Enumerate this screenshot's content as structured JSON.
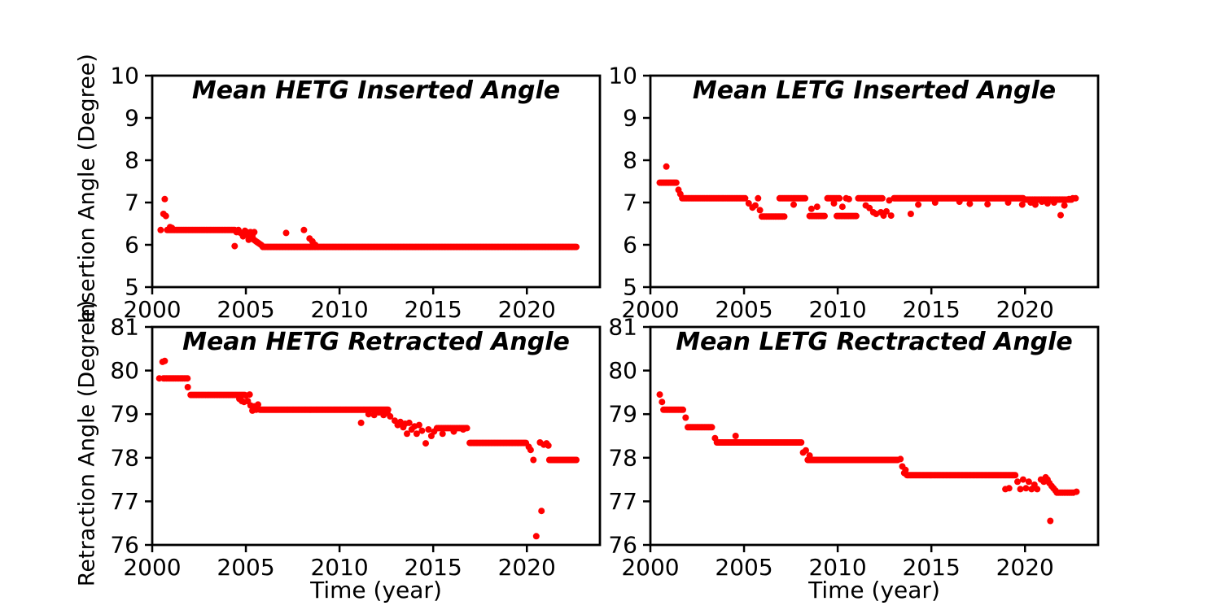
{
  "colors": {
    "marker": "#ff0000",
    "axis": "#000000",
    "background": "#ffffff"
  },
  "axis_labels": {
    "y_top": "Insertion Angle (Degree)",
    "y_bottom": "Retraction Angle (Degree)",
    "x_left": "Time (year)",
    "x_right": "Time (year)"
  },
  "chart_data": [
    {
      "id": "hetg-inserted",
      "type": "scatter",
      "title": "Mean HETG Inserted Angle",
      "xlabel": "",
      "ylabel": "Insertion Angle (Degree)",
      "xlim": [
        2000,
        2023.9
      ],
      "ylim": [
        5,
        10
      ],
      "xticks": [
        2000,
        2005,
        2010,
        2015,
        2020
      ],
      "yticks": [
        5,
        6,
        7,
        8,
        9,
        10
      ],
      "grid": false,
      "legend": null,
      "marker_color": "#ff0000",
      "bands": [
        [
          2000.8,
          2004.45,
          6.35
        ],
        [
          2005.9,
          2022.65,
          5.95,
          0.06
        ]
      ],
      "ramps": [
        [
          2004.95,
          2005.9,
          6.27,
          5.97
        ]
      ],
      "points": [
        [
          2000.45,
          6.35
        ],
        [
          2000.6,
          6.73
        ],
        [
          2000.73,
          6.68
        ],
        [
          2000.67,
          7.08
        ],
        [
          2000.95,
          6.42
        ],
        [
          2001.05,
          6.4
        ],
        [
          2004.4,
          5.97
        ],
        [
          2004.5,
          6.3
        ],
        [
          2004.6,
          6.35
        ],
        [
          2004.72,
          6.28
        ],
        [
          2004.85,
          6.2
        ],
        [
          2004.95,
          6.33
        ],
        [
          2005.05,
          6.3
        ],
        [
          2005.15,
          6.12
        ],
        [
          2005.25,
          6.3
        ],
        [
          2005.35,
          6.22
        ],
        [
          2005.45,
          6.3
        ],
        [
          2007.15,
          6.28
        ],
        [
          2008.1,
          6.35
        ],
        [
          2008.4,
          6.15
        ],
        [
          2008.55,
          6.08
        ],
        [
          2008.7,
          6.0
        ]
      ]
    },
    {
      "id": "letg-inserted",
      "type": "scatter",
      "title": "Mean LETG Inserted Angle",
      "xlabel": "",
      "ylabel": "Insertion Angle (Degree)",
      "xlim": [
        2000,
        2023.9
      ],
      "ylim": [
        5,
        10
      ],
      "xticks": [
        2000,
        2005,
        2010,
        2015,
        2020
      ],
      "yticks": [
        5,
        6,
        7,
        8,
        9,
        10
      ],
      "grid": false,
      "legend": null,
      "marker_color": "#ff0000",
      "bands": [
        [
          2000.5,
          2001.45,
          7.47
        ],
        [
          2001.7,
          2005.1,
          7.1
        ],
        [
          2005.95,
          2007.15,
          6.67
        ],
        [
          2006.9,
          2008.3,
          7.1
        ],
        [
          2008.5,
          2009.35,
          6.68
        ],
        [
          2009.45,
          2010.15,
          7.1
        ],
        [
          2009.95,
          2011.05,
          6.68
        ],
        [
          2011.1,
          2012.4,
          7.1
        ],
        [
          2013.0,
          2019.95,
          7.1,
          0.06
        ],
        [
          2020.0,
          2022.5,
          7.07
        ]
      ],
      "ramps": [],
      "points": [
        [
          2000.85,
          7.85
        ],
        [
          2001.5,
          7.3
        ],
        [
          2001.6,
          7.2
        ],
        [
          2005.25,
          6.98
        ],
        [
          2005.45,
          6.88
        ],
        [
          2005.6,
          6.93
        ],
        [
          2005.75,
          7.1
        ],
        [
          2005.85,
          6.82
        ],
        [
          2007.65,
          6.95
        ],
        [
          2008.6,
          6.85
        ],
        [
          2008.9,
          6.9
        ],
        [
          2009.8,
          6.98
        ],
        [
          2010.25,
          6.9
        ],
        [
          2010.45,
          7.1
        ],
        [
          2010.6,
          7.08
        ],
        [
          2011.5,
          6.93
        ],
        [
          2011.7,
          6.87
        ],
        [
          2011.9,
          6.77
        ],
        [
          2012.05,
          6.73
        ],
        [
          2012.3,
          6.77
        ],
        [
          2012.45,
          6.69
        ],
        [
          2012.6,
          6.79
        ],
        [
          2012.85,
          6.69
        ],
        [
          2012.75,
          7.05
        ],
        [
          2013.9,
          6.73
        ],
        [
          2014.3,
          6.95
        ],
        [
          2015.2,
          7.0
        ],
        [
          2016.5,
          7.02
        ],
        [
          2017.05,
          6.97
        ],
        [
          2018.0,
          6.96
        ],
        [
          2019.1,
          7.0
        ],
        [
          2019.85,
          6.95
        ],
        [
          2020.3,
          7.0
        ],
        [
          2020.55,
          6.95
        ],
        [
          2020.9,
          7.02
        ],
        [
          2021.2,
          6.98
        ],
        [
          2021.55,
          7.0
        ],
        [
          2021.9,
          6.7
        ],
        [
          2022.1,
          6.93
        ],
        [
          2022.35,
          7.08
        ],
        [
          2022.55,
          7.1
        ],
        [
          2022.7,
          7.1
        ]
      ]
    },
    {
      "id": "hetg-retracted",
      "type": "scatter",
      "title": "Mean HETG Retracted Angle",
      "xlabel": "Time (year)",
      "ylabel": "Retraction Angle (Degree)",
      "xlim": [
        2000,
        2023.9
      ],
      "ylim": [
        76,
        81
      ],
      "xticks": [
        2000,
        2005,
        2010,
        2015,
        2020
      ],
      "yticks": [
        76,
        77,
        78,
        79,
        80,
        81
      ],
      "grid": false,
      "legend": null,
      "marker_color": "#ff0000",
      "bands": [
        [
          2000.6,
          2001.95,
          79.82
        ],
        [
          2002.05,
          2004.95,
          79.44
        ],
        [
          2005.75,
          2012.6,
          79.1,
          0.06
        ],
        [
          2015.2,
          2016.85,
          78.68
        ],
        [
          2016.95,
          2020.0,
          78.34,
          0.06
        ],
        [
          2021.2,
          2022.67,
          77.95,
          0.06
        ]
      ],
      "ramps": [],
      "points": [
        [
          2000.38,
          79.82
        ],
        [
          2000.55,
          80.2
        ],
        [
          2000.67,
          80.22
        ],
        [
          2001.9,
          79.62
        ],
        [
          2004.65,
          79.35
        ],
        [
          2004.78,
          79.3
        ],
        [
          2004.9,
          79.28
        ],
        [
          2005.0,
          79.43
        ],
        [
          2005.1,
          79.3
        ],
        [
          2005.2,
          79.45
        ],
        [
          2005.25,
          79.2
        ],
        [
          2005.35,
          79.08
        ],
        [
          2005.45,
          79.18
        ],
        [
          2005.55,
          79.1
        ],
        [
          2005.65,
          79.22
        ],
        [
          2011.15,
          78.8
        ],
        [
          2011.55,
          79.0
        ],
        [
          2011.85,
          78.98
        ],
        [
          2012.1,
          79.04
        ],
        [
          2012.35,
          78.98
        ],
        [
          2012.55,
          79.03
        ],
        [
          2012.7,
          78.95
        ],
        [
          2012.95,
          78.85
        ],
        [
          2013.1,
          78.75
        ],
        [
          2013.25,
          78.82
        ],
        [
          2013.4,
          78.7
        ],
        [
          2013.5,
          78.78
        ],
        [
          2013.6,
          78.55
        ],
        [
          2013.72,
          78.8
        ],
        [
          2013.85,
          78.65
        ],
        [
          2014.0,
          78.72
        ],
        [
          2014.12,
          78.55
        ],
        [
          2014.25,
          78.75
        ],
        [
          2014.4,
          78.62
        ],
        [
          2014.6,
          78.33
        ],
        [
          2014.75,
          78.65
        ],
        [
          2014.9,
          78.5
        ],
        [
          2015.05,
          78.6
        ],
        [
          2015.5,
          78.55
        ],
        [
          2016.1,
          78.6
        ],
        [
          2016.6,
          78.65
        ],
        [
          2020.1,
          78.25
        ],
        [
          2020.2,
          78.18
        ],
        [
          2020.35,
          77.95
        ],
        [
          2020.5,
          76.2
        ],
        [
          2020.78,
          76.78
        ],
        [
          2020.7,
          78.35
        ],
        [
          2020.9,
          78.3
        ],
        [
          2021.05,
          78.33
        ],
        [
          2021.15,
          78.28
        ]
      ]
    },
    {
      "id": "letg-rectracted",
      "type": "scatter",
      "title": "Mean LETG Rectracted Angle",
      "xlabel": "Time (year)",
      "ylabel": "Retraction Angle (Degree)",
      "xlim": [
        2000,
        2023.9
      ],
      "ylim": [
        76,
        81
      ],
      "xticks": [
        2000,
        2005,
        2010,
        2015,
        2020
      ],
      "yticks": [
        76,
        77,
        78,
        79,
        80,
        81
      ],
      "grid": false,
      "legend": null,
      "marker_color": "#ff0000",
      "bands": [
        [
          2000.7,
          2001.75,
          79.1
        ],
        [
          2002.0,
          2003.35,
          78.7
        ],
        [
          2003.55,
          2008.05,
          78.35,
          0.06
        ],
        [
          2008.4,
          2013.25,
          77.95,
          0.06
        ],
        [
          2013.7,
          2019.5,
          77.6,
          0.055
        ],
        [
          2021.7,
          2022.65,
          77.2
        ]
      ],
      "ramps": [],
      "points": [
        [
          2000.5,
          79.45
        ],
        [
          2000.62,
          79.28
        ],
        [
          2001.88,
          78.92
        ],
        [
          2003.45,
          78.45
        ],
        [
          2004.55,
          78.5
        ],
        [
          2008.15,
          78.12
        ],
        [
          2008.3,
          78.17
        ],
        [
          2008.5,
          78.05
        ],
        [
          2013.35,
          77.97
        ],
        [
          2013.45,
          77.8
        ],
        [
          2013.55,
          77.65
        ],
        [
          2013.62,
          77.72
        ],
        [
          2018.95,
          77.28
        ],
        [
          2019.15,
          77.3
        ],
        [
          2019.6,
          77.45
        ],
        [
          2019.75,
          77.28
        ],
        [
          2019.9,
          77.5
        ],
        [
          2020.05,
          77.3
        ],
        [
          2020.2,
          77.45
        ],
        [
          2020.35,
          77.28
        ],
        [
          2020.5,
          77.38
        ],
        [
          2020.65,
          77.28
        ],
        [
          2020.85,
          77.5
        ],
        [
          2021.0,
          77.45
        ],
        [
          2021.1,
          77.55
        ],
        [
          2021.2,
          77.5
        ],
        [
          2021.3,
          77.42
        ],
        [
          2021.42,
          77.35
        ],
        [
          2021.52,
          77.3
        ],
        [
          2021.62,
          77.25
        ],
        [
          2021.35,
          76.55
        ],
        [
          2022.75,
          77.22
        ]
      ]
    }
  ]
}
